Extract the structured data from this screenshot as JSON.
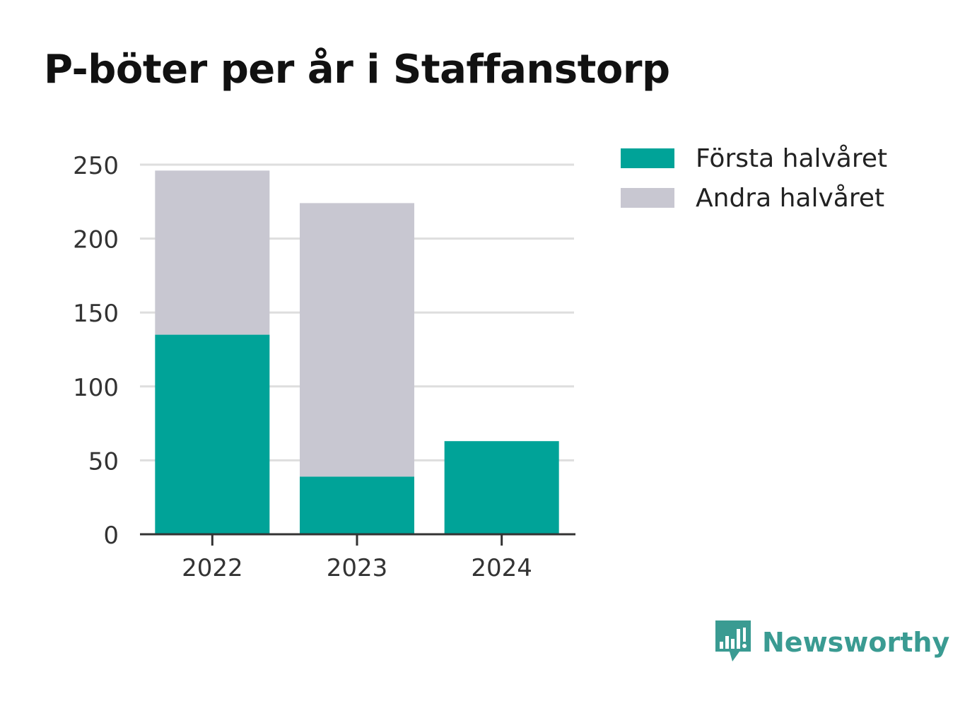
{
  "chart_data": {
    "type": "bar",
    "stacked": true,
    "title": "P-böter per år i Staffanstorp",
    "categories": [
      "2022",
      "2023",
      "2024"
    ],
    "series": [
      {
        "name": "Första halvåret",
        "color": "#00a398",
        "values": [
          135,
          39,
          63
        ]
      },
      {
        "name": "Andra halvåret",
        "color": "#c8c7d1",
        "values": [
          111,
          185,
          null
        ]
      }
    ],
    "ylim": [
      0,
      250
    ],
    "yticks": [
      "0",
      "50",
      "100",
      "150",
      "200",
      "250"
    ],
    "grid": true,
    "legend_position": "right"
  },
  "brand": {
    "name": "Newsworthy",
    "icon": "bar-chart-speech-bubble-icon",
    "color": "#3a9b92"
  }
}
